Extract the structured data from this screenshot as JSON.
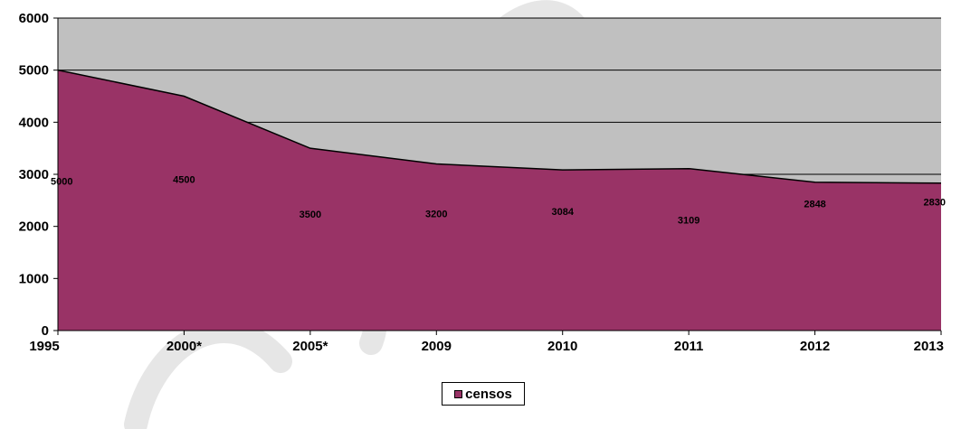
{
  "chart_data": {
    "type": "area",
    "categories": [
      "1995",
      "2000*",
      "2005*",
      "2009",
      "2010",
      "2011",
      "2012",
      "2013"
    ],
    "series": [
      {
        "name": "censos",
        "values": [
          5000,
          4500,
          3500,
          3200,
          3084,
          3109,
          2848,
          2830
        ]
      }
    ],
    "data_labels": [
      "5000",
      "4500",
      "3500",
      "3200",
      "3084",
      "3109",
      "2848",
      "2830"
    ],
    "ylim": [
      0,
      6000
    ],
    "yticks": [
      0,
      1000,
      2000,
      3000,
      4000,
      5000,
      6000
    ],
    "grid": true,
    "legend_position": "bottom",
    "colors": {
      "area": "#993366",
      "plot_background": "#C0C0C0",
      "gridline": "#000000",
      "watermark": "#e4e4e4"
    }
  }
}
